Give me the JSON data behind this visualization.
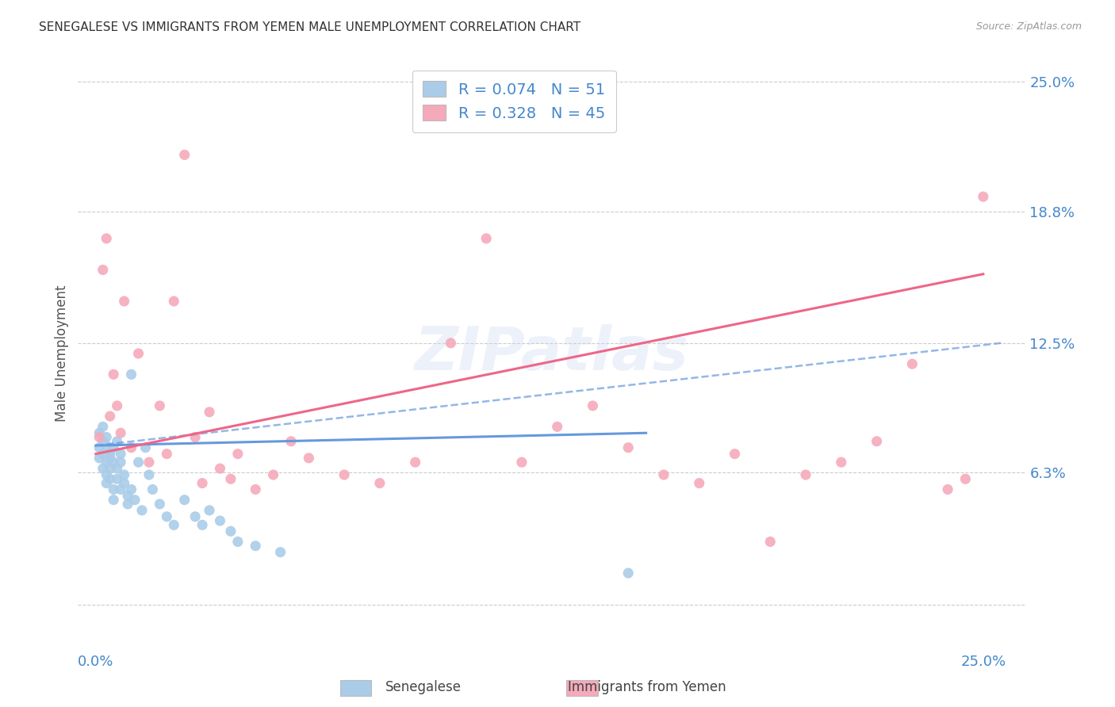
{
  "title": "SENEGALESE VS IMMIGRANTS FROM YEMEN MALE UNEMPLOYMENT CORRELATION CHART",
  "source": "Source: ZipAtlas.com",
  "ylabel": "Male Unemployment",
  "y_tick_values": [
    0.0,
    0.063,
    0.125,
    0.188,
    0.25
  ],
  "y_tick_labels": [
    "",
    "6.3%",
    "12.5%",
    "18.8%",
    "25.0%"
  ],
  "xlim": [
    -0.005,
    0.262
  ],
  "ylim": [
    -0.022,
    0.262
  ],
  "watermark": "ZIPatlas",
  "legend_r1": "R = 0.074",
  "legend_n1": "N = 51",
  "legend_r2": "R = 0.328",
  "legend_n2": "N = 45",
  "series1_color": "#aacce8",
  "series2_color": "#f5aabb",
  "trendline1_color": "#6699dd",
  "trendline2_color": "#ee6688",
  "background_color": "#ffffff",
  "grid_color": "#cccccc",
  "label_color": "#4488cc",
  "senegalese_x": [
    0.001,
    0.001,
    0.001,
    0.002,
    0.002,
    0.002,
    0.002,
    0.003,
    0.003,
    0.003,
    0.003,
    0.003,
    0.004,
    0.004,
    0.004,
    0.004,
    0.005,
    0.005,
    0.005,
    0.005,
    0.006,
    0.006,
    0.006,
    0.007,
    0.007,
    0.007,
    0.008,
    0.008,
    0.009,
    0.009,
    0.01,
    0.01,
    0.011,
    0.012,
    0.013,
    0.014,
    0.015,
    0.016,
    0.018,
    0.02,
    0.022,
    0.025,
    0.028,
    0.03,
    0.032,
    0.035,
    0.038,
    0.04,
    0.045,
    0.052,
    0.15
  ],
  "senegalese_y": [
    0.082,
    0.075,
    0.07,
    0.085,
    0.078,
    0.072,
    0.065,
    0.08,
    0.068,
    0.062,
    0.058,
    0.076,
    0.07,
    0.065,
    0.06,
    0.072,
    0.075,
    0.068,
    0.055,
    0.05,
    0.078,
    0.065,
    0.06,
    0.055,
    0.072,
    0.068,
    0.058,
    0.062,
    0.052,
    0.048,
    0.11,
    0.055,
    0.05,
    0.068,
    0.045,
    0.075,
    0.062,
    0.055,
    0.048,
    0.042,
    0.038,
    0.05,
    0.042,
    0.038,
    0.045,
    0.04,
    0.035,
    0.03,
    0.028,
    0.025,
    0.015
  ],
  "yemen_x": [
    0.001,
    0.002,
    0.003,
    0.004,
    0.005,
    0.006,
    0.007,
    0.008,
    0.01,
    0.012,
    0.015,
    0.018,
    0.02,
    0.022,
    0.025,
    0.028,
    0.03,
    0.032,
    0.035,
    0.038,
    0.04,
    0.045,
    0.05,
    0.055,
    0.06,
    0.07,
    0.08,
    0.09,
    0.1,
    0.11,
    0.12,
    0.13,
    0.14,
    0.15,
    0.16,
    0.17,
    0.18,
    0.19,
    0.2,
    0.21,
    0.22,
    0.23,
    0.24,
    0.245,
    0.25
  ],
  "yemen_y": [
    0.08,
    0.16,
    0.175,
    0.09,
    0.11,
    0.095,
    0.082,
    0.145,
    0.075,
    0.12,
    0.068,
    0.095,
    0.072,
    0.145,
    0.215,
    0.08,
    0.058,
    0.092,
    0.065,
    0.06,
    0.072,
    0.055,
    0.062,
    0.078,
    0.07,
    0.062,
    0.058,
    0.068,
    0.125,
    0.175,
    0.068,
    0.085,
    0.095,
    0.075,
    0.062,
    0.058,
    0.072,
    0.03,
    0.062,
    0.068,
    0.078,
    0.115,
    0.055,
    0.06,
    0.195
  ],
  "trendline1_x_start": 0.0,
  "trendline1_x_end": 0.155,
  "trendline1_y_start": 0.076,
  "trendline1_y_end": 0.082,
  "trendline1_dashed_x_start": 0.0,
  "trendline1_dashed_x_end": 0.255,
  "trendline1_dashed_y_start": 0.076,
  "trendline1_dashed_y_end": 0.125,
  "trendline2_x_start": 0.0,
  "trendline2_x_end": 0.25,
  "trendline2_y_start": 0.072,
  "trendline2_y_end": 0.158
}
